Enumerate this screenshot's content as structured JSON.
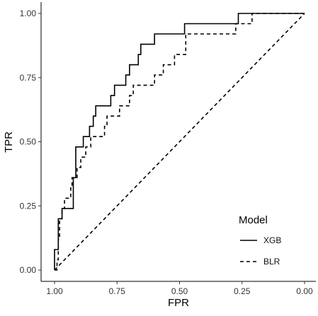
{
  "chart_data": {
    "type": "line",
    "xlabel": "FPR",
    "ylabel": "TPR",
    "xlim": [
      1.0,
      0.0
    ],
    "x_axis_reversed": true,
    "ylim": [
      0.0,
      1.0
    ],
    "x_ticks": [
      "1.00",
      "0.75",
      "0.50",
      "0.25",
      "0.00"
    ],
    "x_tick_values": [
      1.0,
      0.75,
      0.5,
      0.25,
      0.0
    ],
    "y_ticks": [
      "0.00",
      "0.25",
      "0.50",
      "0.75",
      "1.00"
    ],
    "y_tick_values": [
      0.0,
      0.25,
      0.5,
      0.75,
      1.0
    ],
    "grid": false,
    "legend": {
      "title": "Model",
      "position": "bottom-right",
      "entries": [
        {
          "label": "XGB",
          "style": "solid"
        },
        {
          "label": "BLR",
          "style": "dashed"
        }
      ]
    },
    "series": [
      {
        "name": "XGB",
        "style": "solid",
        "color": "#000000",
        "points": [
          [
            1.0,
            0.0
          ],
          [
            1.0,
            0.08
          ],
          [
            0.985,
            0.08
          ],
          [
            0.985,
            0.2
          ],
          [
            0.97,
            0.2
          ],
          [
            0.97,
            0.24
          ],
          [
            0.925,
            0.24
          ],
          [
            0.925,
            0.36
          ],
          [
            0.915,
            0.36
          ],
          [
            0.915,
            0.48
          ],
          [
            0.885,
            0.48
          ],
          [
            0.885,
            0.52
          ],
          [
            0.86,
            0.52
          ],
          [
            0.86,
            0.56
          ],
          [
            0.845,
            0.56
          ],
          [
            0.845,
            0.6
          ],
          [
            0.835,
            0.6
          ],
          [
            0.835,
            0.64
          ],
          [
            0.775,
            0.64
          ],
          [
            0.775,
            0.68
          ],
          [
            0.76,
            0.68
          ],
          [
            0.76,
            0.72
          ],
          [
            0.715,
            0.72
          ],
          [
            0.715,
            0.76
          ],
          [
            0.7,
            0.76
          ],
          [
            0.7,
            0.8
          ],
          [
            0.665,
            0.8
          ],
          [
            0.665,
            0.84
          ],
          [
            0.655,
            0.84
          ],
          [
            0.655,
            0.88
          ],
          [
            0.6,
            0.88
          ],
          [
            0.6,
            0.92
          ],
          [
            0.48,
            0.92
          ],
          [
            0.48,
            0.96
          ],
          [
            0.265,
            0.96
          ],
          [
            0.265,
            1.0
          ],
          [
            0.0,
            1.0
          ]
        ]
      },
      {
        "name": "BLR",
        "style": "dashed",
        "color": "#000000",
        "points": [
          [
            1.0,
            0.0
          ],
          [
            0.99,
            0.0
          ],
          [
            0.99,
            0.04
          ],
          [
            0.985,
            0.04
          ],
          [
            0.985,
            0.12
          ],
          [
            0.98,
            0.12
          ],
          [
            0.98,
            0.2
          ],
          [
            0.97,
            0.2
          ],
          [
            0.97,
            0.24
          ],
          [
            0.96,
            0.24
          ],
          [
            0.96,
            0.28
          ],
          [
            0.935,
            0.28
          ],
          [
            0.935,
            0.32
          ],
          [
            0.93,
            0.32
          ],
          [
            0.93,
            0.36
          ],
          [
            0.91,
            0.36
          ],
          [
            0.91,
            0.4
          ],
          [
            0.895,
            0.4
          ],
          [
            0.895,
            0.44
          ],
          [
            0.875,
            0.44
          ],
          [
            0.875,
            0.48
          ],
          [
            0.855,
            0.48
          ],
          [
            0.855,
            0.52
          ],
          [
            0.8,
            0.52
          ],
          [
            0.8,
            0.56
          ],
          [
            0.79,
            0.56
          ],
          [
            0.79,
            0.6
          ],
          [
            0.74,
            0.6
          ],
          [
            0.74,
            0.64
          ],
          [
            0.7,
            0.64
          ],
          [
            0.7,
            0.68
          ],
          [
            0.685,
            0.68
          ],
          [
            0.685,
            0.72
          ],
          [
            0.6,
            0.72
          ],
          [
            0.6,
            0.76
          ],
          [
            0.565,
            0.76
          ],
          [
            0.565,
            0.8
          ],
          [
            0.52,
            0.8
          ],
          [
            0.52,
            0.84
          ],
          [
            0.475,
            0.84
          ],
          [
            0.475,
            0.92
          ],
          [
            0.275,
            0.92
          ],
          [
            0.275,
            0.96
          ],
          [
            0.21,
            0.96
          ],
          [
            0.21,
            1.0
          ],
          [
            0.0,
            1.0
          ]
        ]
      },
      {
        "name": "",
        "style": "dashed",
        "role": "reference-diagonal",
        "color": "#000000",
        "points": [
          [
            1.0,
            0.0
          ],
          [
            0.0,
            1.0
          ]
        ]
      }
    ]
  }
}
